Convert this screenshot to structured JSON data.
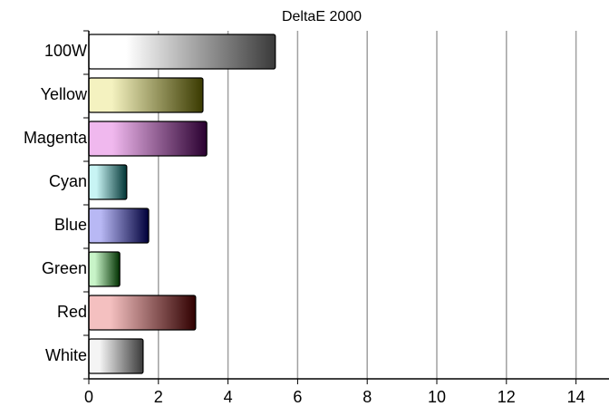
{
  "chart_data": {
    "type": "barh",
    "title": "DeltaE 2000",
    "categories": [
      "100W",
      "Yellow",
      "Magenta",
      "Cyan",
      "Blue",
      "Green",
      "Red",
      "White"
    ],
    "values": [
      5.36,
      3.28,
      3.39,
      1.09,
      1.72,
      0.89,
      3.07,
      1.56
    ],
    "colors": [
      [
        "#ffffff",
        "#3a3a3a"
      ],
      [
        "#f4f2c0",
        "#3a3a00"
      ],
      [
        "#f0b8ee",
        "#2a0030"
      ],
      [
        "#c8f4f4",
        "#003434"
      ],
      [
        "#b8b8f4",
        "#00003a"
      ],
      [
        "#c8f4c8",
        "#003000"
      ],
      [
        "#f4c0c0",
        "#300000"
      ],
      [
        "#f4f4f4",
        "#3a3a3a"
      ]
    ],
    "xlim": [
      0,
      15
    ],
    "xticks": [
      0,
      2,
      4,
      6,
      8,
      10,
      12,
      14
    ],
    "grid": true
  }
}
